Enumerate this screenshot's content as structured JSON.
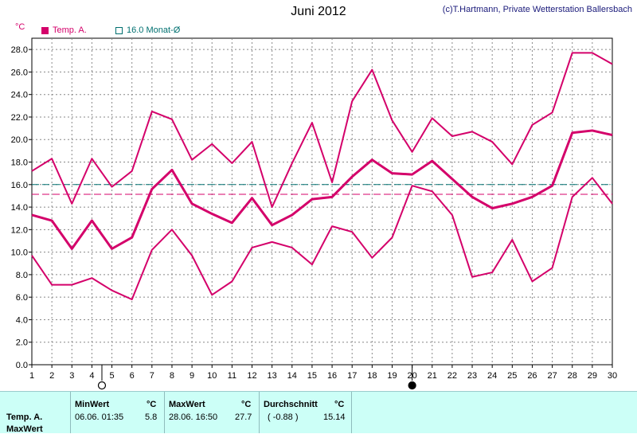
{
  "header": {
    "title": "Juni 2012",
    "copyright": "(c)T.Hartmann, Private Wetterstation Ballersbach",
    "unit": "°C"
  },
  "legend": {
    "temp_label": "Temp. A.",
    "avg_label": "16.0 Monat-Ø"
  },
  "colors": {
    "series": "#d4006a",
    "average": "#007070",
    "grid": "#888888",
    "panel": "#ccfff7"
  },
  "chart_data": {
    "type": "line",
    "title": "Juni 2012",
    "ylabel": "°C",
    "x": [
      1,
      2,
      3,
      4,
      5,
      6,
      7,
      8,
      9,
      10,
      11,
      12,
      13,
      14,
      15,
      16,
      17,
      18,
      19,
      20,
      21,
      22,
      23,
      24,
      25,
      26,
      27,
      28,
      29,
      30
    ],
    "ylim": [
      0,
      29
    ],
    "yticks": [
      0,
      2,
      4,
      6,
      8,
      10,
      12,
      14,
      16,
      18,
      20,
      22,
      24,
      26,
      28
    ],
    "grid": true,
    "series": [
      {
        "name": "max",
        "values": [
          17.2,
          18.3,
          14.3,
          18.3,
          15.8,
          17.2,
          22.5,
          21.8,
          18.2,
          19.6,
          17.9,
          19.8,
          14.0,
          17.9,
          21.5,
          16.2,
          23.4,
          26.2,
          21.7,
          18.9,
          21.9,
          20.3,
          20.7,
          19.8,
          17.8,
          21.3,
          22.4,
          27.7,
          27.7,
          26.7
        ]
      },
      {
        "name": "mean",
        "values": [
          13.3,
          12.8,
          10.3,
          12.8,
          10.3,
          11.3,
          15.6,
          17.3,
          14.3,
          13.4,
          12.6,
          14.8,
          12.4,
          13.3,
          14.7,
          14.9,
          16.7,
          18.2,
          17.0,
          16.9,
          18.1,
          16.5,
          14.9,
          13.9,
          14.3,
          14.9,
          15.9,
          20.6,
          20.8,
          20.4
        ]
      },
      {
        "name": "min",
        "values": [
          9.7,
          7.1,
          7.1,
          7.7,
          6.6,
          5.8,
          10.2,
          12.0,
          9.7,
          6.2,
          7.4,
          10.4,
          10.9,
          10.4,
          8.9,
          12.3,
          11.8,
          9.5,
          11.3,
          15.9,
          15.4,
          13.3,
          7.8,
          8.2,
          11.1,
          7.4,
          8.6,
          14.9,
          16.6,
          14.3
        ]
      }
    ],
    "reference_lines": [
      {
        "label": "16.0 Monat-Ø",
        "value": 16.0,
        "color": "#007070",
        "style": "dashed"
      },
      {
        "value": 15.14,
        "color": "#d4006a",
        "style": "dashed"
      }
    ],
    "moon_phases": [
      {
        "day": 4.5,
        "phase": "full"
      },
      {
        "day": 20,
        "phase": "new"
      }
    ]
  },
  "summary": {
    "row_label": "Temp. A.",
    "row_sub_label": "MaxWert",
    "min": {
      "header": "MinWert",
      "unit": "°C",
      "datetime": "06.06.  01:35",
      "value": "5.8"
    },
    "max": {
      "header": "MaxWert",
      "unit": "°C",
      "datetime": "28.06.  16:50",
      "value": "27.7"
    },
    "avg": {
      "header": "Durchschnitt",
      "unit": "°C",
      "delta": "( -0.88 )",
      "value": "15.14"
    }
  }
}
